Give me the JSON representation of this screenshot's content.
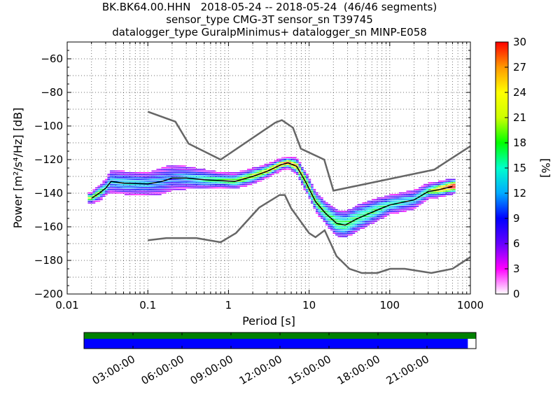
{
  "title": {
    "line1": "BK.BK64.00.HHN   2018-05-24 -- 2018-05-24  (46/46 segments)",
    "line2": "sensor_type CMG-3T sensor_sn T39745",
    "line3": "datalogger_type GuralpMinimus+ datalogger_sn MINP-E058"
  },
  "chart_data": [
    {
      "type": "heatmap",
      "xlabel": "Period [s]",
      "ylabel": "Power [m²/s⁴/Hz] [dB]",
      "x_scale": "log",
      "xlim": [
        0.01,
        1000
      ],
      "ylim": [
        -200,
        -50
      ],
      "x_ticks": [
        "0.01",
        "0.1",
        "1",
        "10",
        "100",
        "1000"
      ],
      "y_ticks": [
        "−200",
        "−180",
        "−160",
        "−140",
        "−120",
        "−100",
        "−80",
        "−60"
      ],
      "grid": true,
      "colorbar": {
        "label": "[%]",
        "range": [
          0,
          30
        ],
        "ticks": [
          "0",
          "3",
          "6",
          "9",
          "12",
          "15",
          "18",
          "21",
          "24",
          "27",
          "30"
        ],
        "colors": [
          "#ffffff",
          "#ff00ff",
          "#6600ff",
          "#0000ff",
          "#00aaff",
          "#00ffcc",
          "#00ff00",
          "#ccff00",
          "#ffff00",
          "#ff9900",
          "#ff0000"
        ]
      },
      "series": [
        {
          "role": "high noise model",
          "color": "#666666",
          "x": [
            0.1,
            0.22,
            0.32,
            0.8,
            3.8,
            4.6,
            6.3,
            7.9,
            15.4,
            20,
            354.8,
            1000
          ],
          "y": [
            -91.5,
            -97.4,
            -110.5,
            -120,
            -98,
            -96.5,
            -101,
            -113.5,
            -120,
            -138.5,
            -126,
            -112
          ]
        },
        {
          "role": "low noise model",
          "color": "#666666",
          "x": [
            0.1,
            0.17,
            0.4,
            0.8,
            1.24,
            2.4,
            4.3,
            5,
            6,
            10,
            12,
            15.6,
            21.9,
            31.6,
            45,
            70,
            101,
            154,
            328,
            600,
            1000
          ],
          "y": [
            -168,
            -166.7,
            -166.7,
            -169.2,
            -163.7,
            -148.6,
            -141.1,
            -141.1,
            -149,
            -163.8,
            -166.2,
            -162.1,
            -177.5,
            -185,
            -187.5,
            -187.5,
            -185,
            -185,
            -187.5,
            -185,
            -178
          ]
        },
        {
          "role": "median PSD",
          "color": "#000000",
          "x": [
            0.02,
            0.025,
            0.03,
            0.035,
            0.05,
            0.1,
            0.15,
            0.2,
            0.3,
            0.5,
            0.8,
            1.2,
            2,
            3,
            4.5,
            5.5,
            7,
            9,
            12,
            16,
            22,
            28,
            40,
            70,
            100,
            200,
            300,
            400,
            600
          ],
          "y": [
            -143,
            -140,
            -137,
            -133,
            -134,
            -134.5,
            -133,
            -131,
            -131,
            -132,
            -132.5,
            -133,
            -130,
            -127,
            -123,
            -122,
            -124,
            -133,
            -145,
            -152,
            -158,
            -159,
            -155,
            -150,
            -147,
            -144,
            -139,
            -138,
            -136
          ]
        }
      ],
      "density": {
        "x": [
          0.02,
          0.025,
          0.03,
          0.035,
          0.05,
          0.1,
          0.15,
          0.2,
          0.3,
          0.5,
          0.8,
          1.2,
          2,
          3,
          4.5,
          5.5,
          7,
          9,
          12,
          16,
          22,
          28,
          40,
          70,
          100,
          200,
          300,
          400,
          600
        ],
        "median_db": [
          -143,
          -140,
          -137,
          -133,
          -134,
          -134.5,
          -133,
          -131,
          -131,
          -132,
          -132.5,
          -133,
          -130,
          -127,
          -123,
          -122,
          -124,
          -133,
          -145,
          -152,
          -158,
          -159,
          -155,
          -150,
          -147,
          -144,
          -139,
          -138,
          -136
        ],
        "spread_db": [
          2,
          3,
          3,
          5,
          5,
          5,
          6,
          6,
          5,
          4,
          3,
          3,
          3,
          2.5,
          2,
          2,
          3,
          4,
          4,
          5,
          6,
          6,
          6,
          5,
          4,
          4,
          3,
          3,
          3
        ],
        "peak_percent": [
          18,
          16,
          12,
          9,
          10,
          9,
          8,
          7,
          9,
          12,
          14,
          16,
          18,
          20,
          24,
          26,
          22,
          18,
          16,
          14,
          14,
          14,
          13,
          13,
          12,
          10,
          14,
          22,
          28
        ]
      }
    },
    {
      "type": "bar",
      "role": "data coverage timeline",
      "x_ticks": [
        "03:00:00",
        "06:00:00",
        "09:00:00",
        "12:00:00",
        "15:00:00",
        "18:00:00",
        "21:00:00"
      ],
      "x_range_hours": [
        0,
        24
      ],
      "series": [
        {
          "role": "coverage",
          "color": "#008000",
          "start_hours": 0,
          "end_hours": 24
        },
        {
          "role": "processed segments",
          "color": "#0000ff",
          "start_hours": 0,
          "end_hours": 23.5
        }
      ]
    }
  ]
}
